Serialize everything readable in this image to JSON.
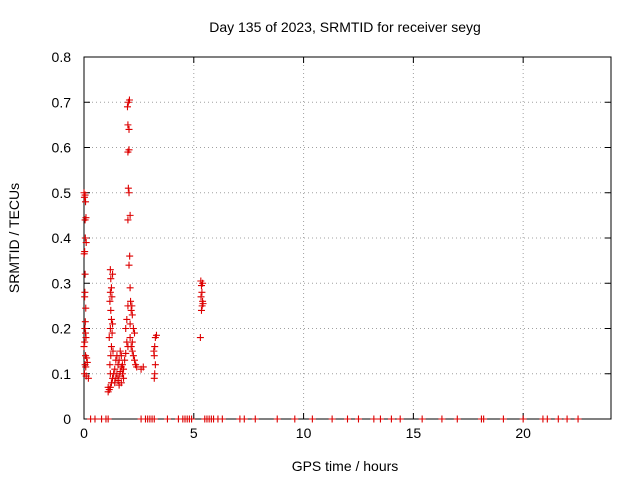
{
  "chart_data": {
    "type": "scatter",
    "title": "Day 135 of 2023, SRMTID for receiver seyg",
    "xlabel": "GPS time / hours",
    "ylabel": "SRMTID / TECUs",
    "xlim": [
      0,
      24
    ],
    "ylim": [
      0,
      0.8
    ],
    "xticks": [
      0,
      5,
      10,
      15,
      20
    ],
    "xtick_labels": [
      "0",
      "5",
      "10",
      "15",
      "20"
    ],
    "yticks": [
      0,
      0.1,
      0.2,
      0.3,
      0.4,
      0.5,
      0.6,
      0.7,
      0.8
    ],
    "ytick_labels": [
      "0",
      "0.1",
      "0.2",
      "0.3",
      "0.4",
      "0.5",
      "0.6",
      "0.7",
      "0.8"
    ],
    "grid": true,
    "marker": "+",
    "marker_color": "#dd0000",
    "series": [
      {
        "name": "SRMTID",
        "points": [
          [
            0.0,
            0.5
          ],
          [
            0.02,
            0.49
          ],
          [
            0.05,
            0.44
          ],
          [
            0.03,
            0.37
          ],
          [
            0.01,
            0.365
          ],
          [
            0.06,
            0.4
          ],
          [
            0.05,
            0.32
          ],
          [
            0.04,
            0.28
          ],
          [
            0.03,
            0.27
          ],
          [
            0.08,
            0.245
          ],
          [
            0.06,
            0.215
          ],
          [
            0.04,
            0.2
          ],
          [
            0.07,
            0.19
          ],
          [
            0.09,
            0.18
          ],
          [
            0.03,
            0.17
          ],
          [
            0.0,
            0.16
          ],
          [
            0.07,
            0.14
          ],
          [
            0.12,
            0.135
          ],
          [
            0.15,
            0.125
          ],
          [
            0.05,
            0.12
          ],
          [
            0.08,
            0.115
          ],
          [
            0.02,
            0.1
          ],
          [
            0.1,
            0.095
          ],
          [
            0.2,
            0.09
          ],
          [
            0.05,
            0.495
          ],
          [
            0.07,
            0.48
          ],
          [
            0.09,
            0.445
          ],
          [
            0.1,
            0.39
          ],
          [
            1.1,
            0.07
          ],
          [
            1.1,
            0.06
          ],
          [
            1.15,
            0.065
          ],
          [
            1.2,
            0.07
          ],
          [
            1.25,
            0.08
          ],
          [
            1.3,
            0.09
          ],
          [
            1.2,
            0.1
          ],
          [
            1.18,
            0.12
          ],
          [
            1.22,
            0.14
          ],
          [
            1.25,
            0.16
          ],
          [
            1.15,
            0.18
          ],
          [
            1.2,
            0.2
          ],
          [
            1.25,
            0.22
          ],
          [
            1.22,
            0.24
          ],
          [
            1.18,
            0.26
          ],
          [
            1.2,
            0.28
          ],
          [
            1.25,
            0.29
          ],
          [
            1.22,
            0.31
          ],
          [
            1.2,
            0.33
          ],
          [
            1.3,
            0.32
          ],
          [
            1.27,
            0.27
          ],
          [
            1.3,
            0.21
          ],
          [
            1.28,
            0.19
          ],
          [
            1.32,
            0.15
          ],
          [
            1.4,
            0.08
          ],
          [
            1.45,
            0.09
          ],
          [
            1.5,
            0.1
          ],
          [
            1.55,
            0.12
          ],
          [
            1.6,
            0.13
          ],
          [
            1.65,
            0.15
          ],
          [
            1.7,
            0.14
          ],
          [
            1.75,
            0.12
          ],
          [
            1.8,
            0.11
          ],
          [
            1.5,
            0.14
          ],
          [
            1.55,
            0.085
          ],
          [
            1.6,
            0.095
          ],
          [
            1.65,
            0.105
          ],
          [
            1.7,
            0.115
          ],
          [
            1.75,
            0.1
          ],
          [
            1.8,
            0.09
          ],
          [
            1.4,
            0.11
          ],
          [
            1.45,
            0.13
          ],
          [
            1.35,
            0.1
          ],
          [
            1.85,
            0.13
          ],
          [
            1.9,
            0.145
          ],
          [
            1.6,
            0.075
          ],
          [
            1.7,
            0.08
          ],
          [
            1.9,
            0.2
          ],
          [
            1.95,
            0.22
          ],
          [
            2.0,
            0.25
          ],
          [
            2.05,
            0.34
          ],
          [
            2.0,
            0.44
          ],
          [
            2.05,
            0.5
          ],
          [
            2.0,
            0.59
          ],
          [
            2.05,
            0.595
          ],
          [
            2.0,
            0.65
          ],
          [
            2.05,
            0.64
          ],
          [
            1.98,
            0.69
          ],
          [
            2.02,
            0.7
          ],
          [
            2.07,
            0.705
          ],
          [
            2.1,
            0.45
          ],
          [
            2.08,
            0.36
          ],
          [
            2.1,
            0.29
          ],
          [
            2.12,
            0.26
          ],
          [
            2.15,
            0.24
          ],
          [
            2.2,
            0.23
          ],
          [
            2.18,
            0.25
          ],
          [
            2.1,
            0.21
          ],
          [
            2.1,
            0.18
          ],
          [
            2.15,
            0.16
          ],
          [
            2.2,
            0.15
          ],
          [
            2.25,
            0.14
          ],
          [
            2.3,
            0.13
          ],
          [
            2.35,
            0.12
          ],
          [
            2.4,
            0.115
          ],
          [
            2.2,
            0.17
          ],
          [
            2.0,
            0.16
          ],
          [
            1.95,
            0.17
          ],
          [
            2.25,
            0.2
          ],
          [
            2.3,
            0.19
          ],
          [
            2.02,
            0.51
          ],
          [
            2.6,
            0.11
          ],
          [
            2.7,
            0.115
          ],
          [
            3.2,
            0.09
          ],
          [
            3.22,
            0.1
          ],
          [
            3.25,
            0.12
          ],
          [
            3.2,
            0.14
          ],
          [
            3.22,
            0.16
          ],
          [
            3.25,
            0.18
          ],
          [
            3.3,
            0.185
          ],
          [
            3.18,
            0.15
          ],
          [
            5.3,
            0.18
          ],
          [
            5.35,
            0.24
          ],
          [
            5.38,
            0.25
          ],
          [
            5.4,
            0.26
          ],
          [
            5.33,
            0.27
          ],
          [
            5.37,
            0.28
          ],
          [
            5.4,
            0.3
          ],
          [
            5.32,
            0.305
          ],
          [
            5.35,
            0.295
          ],
          [
            5.42,
            0.255
          ],
          [
            0.3,
            0
          ],
          [
            0.5,
            0
          ],
          [
            0.8,
            0
          ],
          [
            1.0,
            0
          ],
          [
            1.1,
            0
          ],
          [
            2.6,
            0
          ],
          [
            2.8,
            0
          ],
          [
            2.9,
            0
          ],
          [
            3.0,
            0
          ],
          [
            3.1,
            0
          ],
          [
            3.2,
            0
          ],
          [
            3.8,
            0
          ],
          [
            4.3,
            0
          ],
          [
            4.5,
            0
          ],
          [
            4.6,
            0
          ],
          [
            4.7,
            0
          ],
          [
            4.8,
            0
          ],
          [
            4.9,
            0
          ],
          [
            5.5,
            0
          ],
          [
            5.6,
            0
          ],
          [
            5.7,
            0
          ],
          [
            5.8,
            0
          ],
          [
            5.9,
            0
          ],
          [
            6.1,
            0
          ],
          [
            6.3,
            0
          ],
          [
            7.1,
            0
          ],
          [
            7.3,
            0
          ],
          [
            7.8,
            0
          ],
          [
            8.8,
            0
          ],
          [
            9.6,
            0
          ],
          [
            10.4,
            0
          ],
          [
            11.3,
            0
          ],
          [
            12.0,
            0
          ],
          [
            12.5,
            0
          ],
          [
            13.2,
            0
          ],
          [
            13.5,
            0
          ],
          [
            14.0,
            0
          ],
          [
            14.4,
            0
          ],
          [
            15.4,
            0
          ],
          [
            16.3,
            0
          ],
          [
            17.0,
            0
          ],
          [
            18.1,
            0
          ],
          [
            18.2,
            0
          ],
          [
            19.1,
            0
          ],
          [
            20.0,
            0
          ],
          [
            20.9,
            0
          ],
          [
            21.1,
            0
          ],
          [
            21.6,
            0
          ],
          [
            22.0,
            0
          ],
          [
            22.5,
            0
          ]
        ]
      }
    ]
  }
}
